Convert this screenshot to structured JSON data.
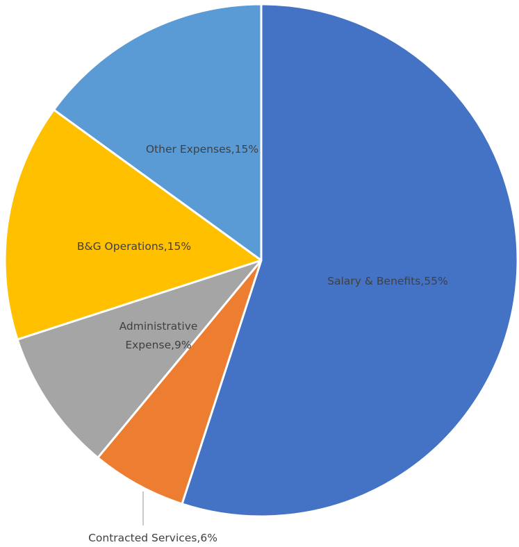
{
  "chart_data": {
    "type": "pie",
    "title": "",
    "start_angle_deg": 0,
    "direction": "clockwise",
    "slices": [
      {
        "label": "Salary & Benefits",
        "value": 55,
        "value_text": "55%",
        "color": "#4472C4",
        "label_text": "Salary & Benefits,55%"
      },
      {
        "label": "Contracted Services",
        "value": 6,
        "value_text": "6%",
        "color": "#ED7D31",
        "label_text": "Contracted Services,6%"
      },
      {
        "label": "Administrative Expense",
        "value": 9,
        "value_text": "9%",
        "color": "#A5A5A5",
        "label_lines": [
          "Administrative",
          "Expense,9%"
        ]
      },
      {
        "label": "B&G Operations",
        "value": 15,
        "value_text": "15%",
        "color": "#FFC000",
        "label_text": "B&G Operations,15%"
      },
      {
        "label": "Other Expenses",
        "value": 15,
        "value_text": "15%",
        "color": "#5B9BD5",
        "label_text": "Other Expenses,15%"
      }
    ],
    "legend": "none",
    "data_labels": "category,percentage"
  }
}
